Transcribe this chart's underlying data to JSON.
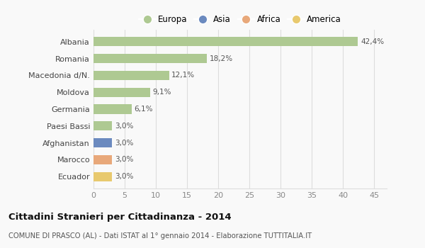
{
  "categories": [
    "Albania",
    "Romania",
    "Macedonia d/N.",
    "Moldova",
    "Germania",
    "Paesi Bassi",
    "Afghanistan",
    "Marocco",
    "Ecuador"
  ],
  "values": [
    42.4,
    18.2,
    12.1,
    9.1,
    6.1,
    3.0,
    3.0,
    3.0,
    3.0
  ],
  "labels": [
    "42,4%",
    "18,2%",
    "12,1%",
    "9,1%",
    "6,1%",
    "3,0%",
    "3,0%",
    "3,0%",
    "3,0%"
  ],
  "colors": [
    "#aec992",
    "#aec992",
    "#aec992",
    "#aec992",
    "#aec992",
    "#aec992",
    "#6b8abf",
    "#e8a87a",
    "#e8c96e"
  ],
  "legend_labels": [
    "Europa",
    "Asia",
    "Africa",
    "America"
  ],
  "legend_colors": [
    "#aec992",
    "#6b8abf",
    "#e8a87a",
    "#e8c96e"
  ],
  "title": "Cittadini Stranieri per Cittadinanza - 2014",
  "subtitle": "COMUNE DI PRASCO (AL) - Dati ISTAT al 1° gennaio 2014 - Elaborazione TUTTITALIA.IT",
  "xlim": [
    0,
    47
  ],
  "xticks": [
    0,
    5,
    10,
    15,
    20,
    25,
    30,
    35,
    40,
    45
  ],
  "background_color": "#f9f9f9",
  "grid_color": "#dddddd",
  "bar_height": 0.55
}
